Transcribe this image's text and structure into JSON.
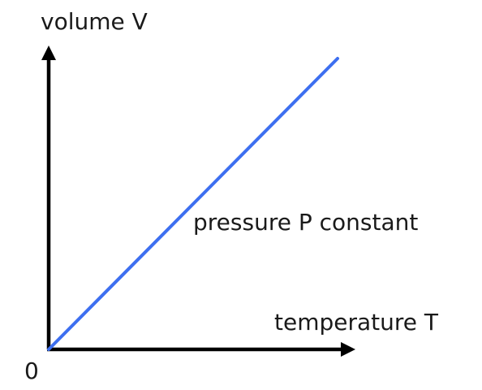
{
  "chart_data": {
    "type": "line",
    "title": "",
    "xlabel": "temperature T",
    "ylabel": "volume V",
    "origin_label": "0",
    "annotation": "pressure P constant",
    "xlim": [
      0,
      1
    ],
    "ylim": [
      0,
      1
    ],
    "grid": false,
    "legend": "none",
    "series": [
      {
        "x": [
          0,
          1
        ],
        "y": [
          0,
          1
        ],
        "color": "#3d6ff0"
      }
    ],
    "axis_color": "#000000"
  }
}
